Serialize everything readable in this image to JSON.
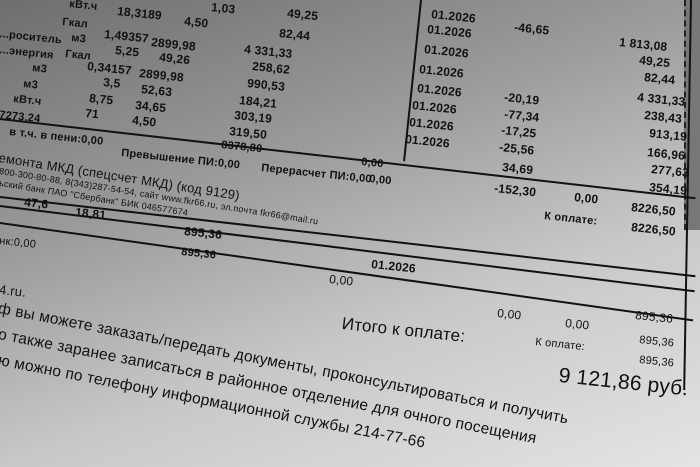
{
  "rows": [
    {
      "unit": "кВт.ч",
      "qty": "18,3189",
      "tariff": "4,50",
      "amount": "49,25",
      "period": "01.2026",
      "recalc": "-46,65",
      "total": "1 813,08"
    },
    {
      "label": "...роситель",
      "unit": "м3",
      "qty": "1,49357",
      "tariff": "2899,98",
      "amount": "82,44",
      "period": "01.2026",
      "total": "49,25"
    },
    {
      "label": "...энергия",
      "unit": "Гкал",
      "qty": "5,25",
      "tariff": "49,26",
      "amount": "4 331,33",
      "period": "01.2026",
      "total": "82,44"
    },
    {
      "unit": "м3",
      "qty": "0,34157",
      "tariff": "2899,98",
      "amount": "258,62",
      "period": "01.2026",
      "total": "4 331,33"
    },
    {
      "unit": "м3",
      "qty": "3,5",
      "tariff": "52,63",
      "amount": "990,53",
      "period": "01.2026",
      "recalc": "-20,19",
      "total": "238,43"
    },
    {
      "unit": "кВт.ч",
      "qty": "8,75",
      "tariff": "34,65",
      "amount": "184,21",
      "period": "01.2026",
      "recalc": "-77,34",
      "total": "913,19"
    },
    {
      "label": "7273,24",
      "qty": "71",
      "tariff": "4,50",
      "amount": "303,19",
      "period": "01.2026",
      "recalc": "-17,25",
      "total": "166,96"
    },
    {
      "amount": "319,50",
      "period": "01.2026",
      "recalc": "-25,56",
      "total": "277,63"
    }
  ],
  "extra_unit": "Гкал",
  "extra_top": "1,03",
  "penalty": "в т.ч. в пени:0,00",
  "sum_amount": "8378,80",
  "excess": "Превышение ПИ:0,00",
  "recalc_pi": "Перерасчет ПИ:0,00",
  "zero1": "0,00",
  "zero2": "0,00",
  "recalc_extra": "34,69",
  "recalc_sum": "-152,30",
  "total_extra": "354,19",
  "pay_zero": "0,00",
  "pay_sum1": "8226,50",
  "pay_label": "К оплате:",
  "pay_sum2": "8226,50",
  "fund_title": "емонта МКД (спецсчет МКД) (код 9129)",
  "fund_contacts": "800-300-80-88, 8(343)287-54-54, сайт www.fkr66.ru, эл.почта fkr66@mail.ru",
  "fund_bank": "ьский банк ПАО \"Сбербанк\" БИК 046577674",
  "fund_row": {
    "area": "47,6",
    "tariff": "18,81",
    "amount": "895,36",
    "penalty": "нк:0,00",
    "amount2": "895,36",
    "period": "01.2026",
    "zero": "0,00"
  },
  "fund_total": {
    "zero1": "0,00",
    "zero2": "0,00",
    "total": "895,36",
    "pay_label": "К оплате:",
    "pay1": "895,36",
    "pay2": "895,36"
  },
  "site_tail": "4.ru.",
  "grand_label": "Итого к оплате:",
  "grand_total": "9 121,86 руб.",
  "notice": [
    "ф вы можете заказать/передать документы, проконсультироваться и получить",
    "о также заранее записаться в районное отделение для очного посещения",
    "ю можно по телефону информационной службы 214-77-66"
  ]
}
